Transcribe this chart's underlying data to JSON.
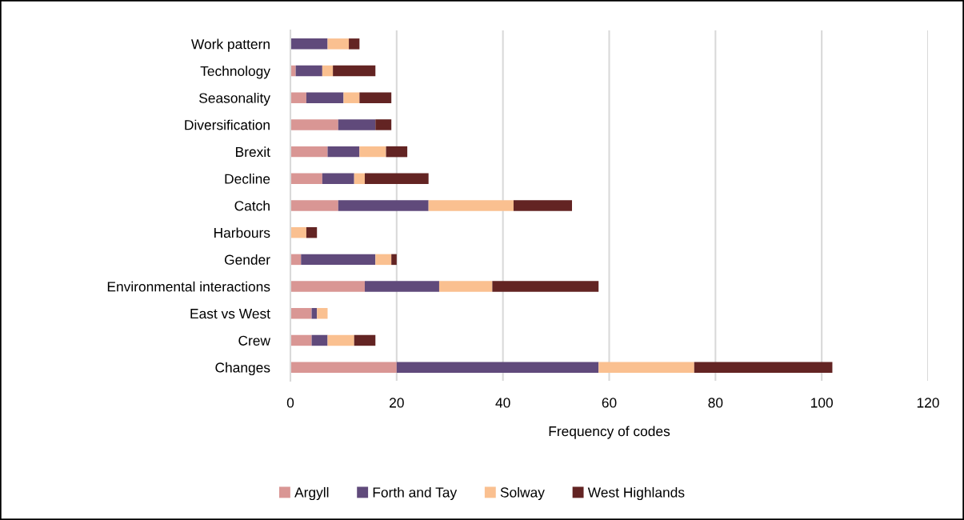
{
  "chart_data": {
    "type": "bar",
    "orientation": "horizontal",
    "stacked": true,
    "categories": [
      "Work pattern",
      "Technology",
      "Seasonality",
      "Diversification",
      "Brexit",
      "Decline",
      "Catch",
      "Harbours",
      "Gender",
      "Environmental interactions",
      "East vs West",
      "Crew",
      "Changes"
    ],
    "series": [
      {
        "name": "Argyll",
        "color": "#d99694",
        "values": [
          null,
          1,
          3,
          9,
          7,
          6,
          9,
          null,
          2,
          14,
          4,
          4,
          20
        ]
      },
      {
        "name": "Forth and Tay",
        "color": "#604a7b",
        "values": [
          7,
          5,
          7,
          7,
          6,
          6,
          17,
          null,
          14,
          14,
          1,
          3,
          38
        ]
      },
      {
        "name": "Solway",
        "color": "#fac090",
        "values": [
          4,
          2,
          3,
          null,
          5,
          2,
          16,
          3,
          3,
          10,
          2,
          5,
          18
        ]
      },
      {
        "name": "West Highlands",
        "color": "#632423",
        "values": [
          2,
          8,
          6,
          3,
          4,
          12,
          11,
          2,
          1,
          20,
          null,
          4,
          26
        ]
      }
    ],
    "xlabel": "Frequency of codes",
    "xlim": [
      0,
      120
    ],
    "xticks": [
      0,
      20,
      40,
      60,
      80,
      100,
      120
    ],
    "grid": "x",
    "legend": "bottom"
  }
}
